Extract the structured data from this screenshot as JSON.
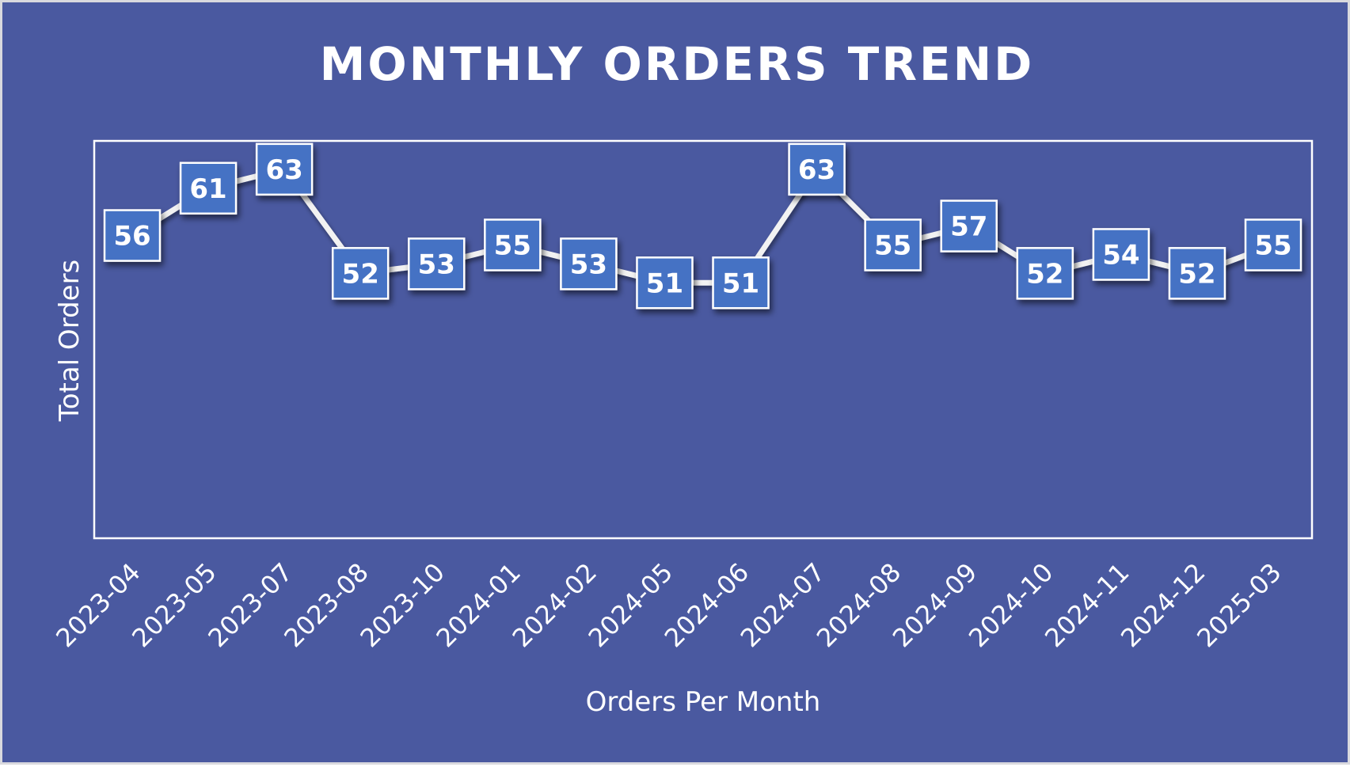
{
  "chart_data": {
    "type": "line",
    "title": "MONTHLY ORDERS TREND",
    "xlabel": "Orders Per Month",
    "ylabel": "Total Orders",
    "categories": [
      "2023-04",
      "2023-05",
      "2023-07",
      "2023-08",
      "2023-10",
      "2024-01",
      "2024-02",
      "2024-05",
      "2024-06",
      "2024-07",
      "2024-08",
      "2024-09",
      "2024-10",
      "2024-11",
      "2024-12",
      "2025-03"
    ],
    "values": [
      56,
      61,
      63,
      52,
      53,
      55,
      53,
      51,
      51,
      63,
      55,
      57,
      52,
      54,
      52,
      55
    ],
    "ylim": [
      24,
      66
    ],
    "grid": false,
    "legend": "none",
    "colors": {
      "background": "#4a59a0",
      "plot_border": "#ffffff",
      "line": "#f2f2f2",
      "marker_fill": "#4472c4",
      "marker_border": "#ffffff",
      "text": "#ffffff"
    }
  }
}
